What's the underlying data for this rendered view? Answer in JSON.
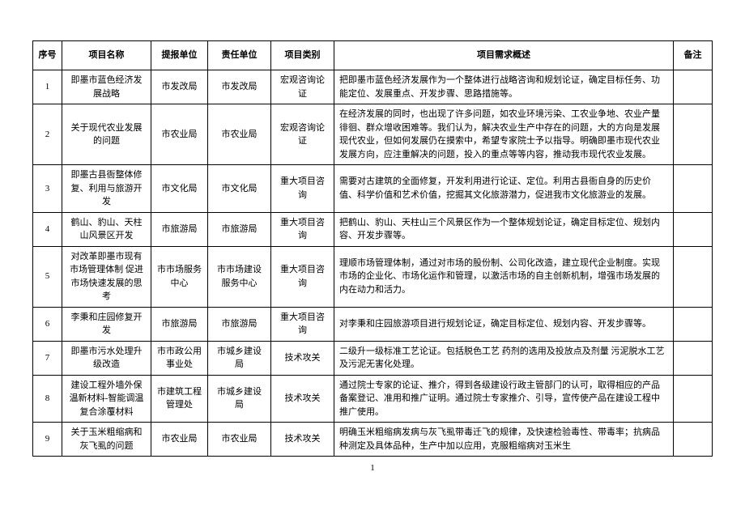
{
  "table": {
    "headers": {
      "seq": "序号",
      "name": "项目名称",
      "report_unit": "提报单位",
      "resp_unit": "责任单位",
      "type": "项目类别",
      "desc": "项目需求概述",
      "note": "备注"
    },
    "rows": [
      {
        "seq": "1",
        "name": "即墨市蓝色经济发展战略",
        "report_unit": "市发改局",
        "resp_unit": "市发改局",
        "type": "宏观咨询论证",
        "desc": "把即墨市蓝色经济发展作为一个整体进行战略咨询和规划论证，确定目标任务、功能定位、发展重点、开发步骤、思路措施等。",
        "note": ""
      },
      {
        "seq": "2",
        "name": "关于现代农业发展的问题",
        "report_unit": "市农业局",
        "resp_unit": "市农业局",
        "type": "宏观咨询论证",
        "desc": "在经济发展的同时，也出现了许多问题，如农业环境污染、工农业争地、农业产量徘徊、群众增收困难等。我们认为，解决农业生产中存在的问题，大的方向是发展现代农业，但如何发展仍在摸索中，希望专家院士予以指导。明确即墨市现代农业发展方向，应注重解决的问题，投入的重点等等内容，推动我市现代农业发展。",
        "note": ""
      },
      {
        "seq": "3",
        "name": "即墨古县衙整体修复、利用与旅游开发",
        "report_unit": "市文化局",
        "resp_unit": "市文化局",
        "type": "重大项目咨询",
        "desc": "需要对古建筑的全面修复，开发利用进行论证、定位。利用古县衙自身的历史价值、科学价值和艺术价值，挖掘其文化旅游潜力，促进我市文化旅游业的发展。",
        "note": ""
      },
      {
        "seq": "4",
        "name": "鹤山、豹山、天柱山风景区开发",
        "report_unit": "市旅游局",
        "resp_unit": "市旅游局",
        "type": "重大项目咨询",
        "desc": "把鹤山、豹山、天柱山三个风景区作为一个整体规划论证，确定目标定位、规划内容、开发步骤等。",
        "note": ""
      },
      {
        "seq": "5",
        "name": "对改革即墨市现有市场管理体制 促进市场快速发展的思考",
        "report_unit": "市市场服务中心",
        "resp_unit": "市市场建设服务中心",
        "type": "重大项目咨询",
        "desc": "理顺市场管理体制，通过对市场的股份制、公司化改造，建立现代企业制度。实现市场的企业化、市场化运作和管理，以激活市场的自主创新机制，增强市场发展的内在动力和活力。",
        "note": ""
      },
      {
        "seq": "6",
        "name": "李秉和庄园修复开发",
        "report_unit": "市旅游局",
        "resp_unit": "市旅游局",
        "type": "重大项目咨询",
        "desc": "对李秉和庄园旅游项目进行规划论证，确定目标定位、规划内容、开发步骤等。",
        "note": ""
      },
      {
        "seq": "7",
        "name": "即墨市污水处理升级改造",
        "report_unit": "市市政公用事业处",
        "resp_unit": "市城乡建设局",
        "type": "技术攻关",
        "desc": "二级升一级标准工艺论证。包括脱色工艺 药剂的选用及投放点及剂量 污泥脱水工艺及污泥无害化处理。",
        "note": ""
      },
      {
        "seq": "8",
        "name": "建设工程外墙外保温新材料-智能调温复合涂覆材料",
        "report_unit": "市建筑工程管理处",
        "resp_unit": "市城乡建设局",
        "type": "技术攻关",
        "desc": "通过院士专家的论证、推介，得到各级建设行政主管部门的认可，取得相应的产品备案登记、准用和推广证明。通过院士专家推介、引导，宣传使产品在建设工程中推广使用。",
        "note": ""
      },
      {
        "seq": "9",
        "name": "关于玉米粗缩病和灰飞虱的问题",
        "report_unit": "市农业局",
        "resp_unit": "市农业局",
        "type": "技术攻关",
        "desc": "明确玉米粗缩病发病与灰飞虱带毒迁飞的规律，及快速检验毒性、带毒率；抗病品种测定及具体品种，生产中加以应用，克服粗缩病对玉米生",
        "note": ""
      }
    ]
  },
  "page_number": "1"
}
